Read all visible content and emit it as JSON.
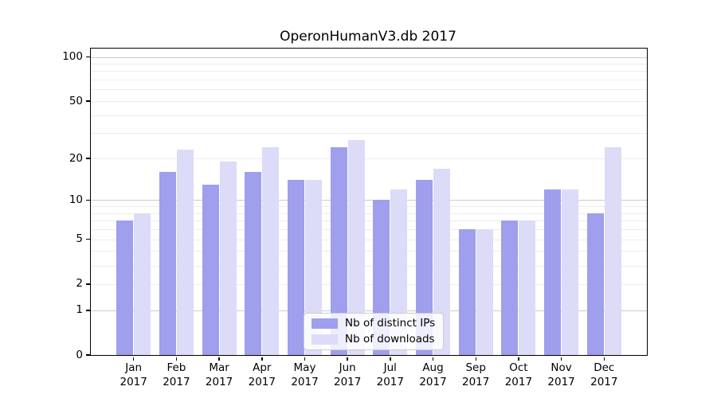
{
  "chart_data": {
    "type": "bar",
    "title": "OperonHumanV3.db 2017",
    "categories": [
      "Jan",
      "Feb",
      "Mar",
      "Apr",
      "May",
      "Jun",
      "Jul",
      "Aug",
      "Sep",
      "Oct",
      "Nov",
      "Dec"
    ],
    "x_sub_label": "2017",
    "series": [
      {
        "name": "Nb of distinct IPs",
        "color": "#9f9fee",
        "values": [
          7,
          16,
          13,
          16,
          14,
          24,
          10,
          14,
          6,
          7,
          12,
          8
        ]
      },
      {
        "name": "Nb of downloads",
        "color": "#dcdcf8",
        "values": [
          8,
          23,
          19,
          24,
          14,
          27,
          12,
          17,
          6,
          7,
          12,
          24
        ]
      }
    ],
    "xlabel": "",
    "ylabel": "",
    "yscale": "log1p",
    "ylim": [
      0,
      114
    ],
    "y_ticks": [
      0,
      1,
      2,
      5,
      10,
      20,
      50,
      100
    ],
    "y_major_gridlines": [
      1,
      10,
      100
    ],
    "y_minor_gridlines": [
      2,
      3,
      4,
      5,
      6,
      7,
      8,
      9,
      20,
      30,
      40,
      50,
      60,
      70,
      80,
      90
    ],
    "grid": true,
    "legend_position": "lower center"
  }
}
